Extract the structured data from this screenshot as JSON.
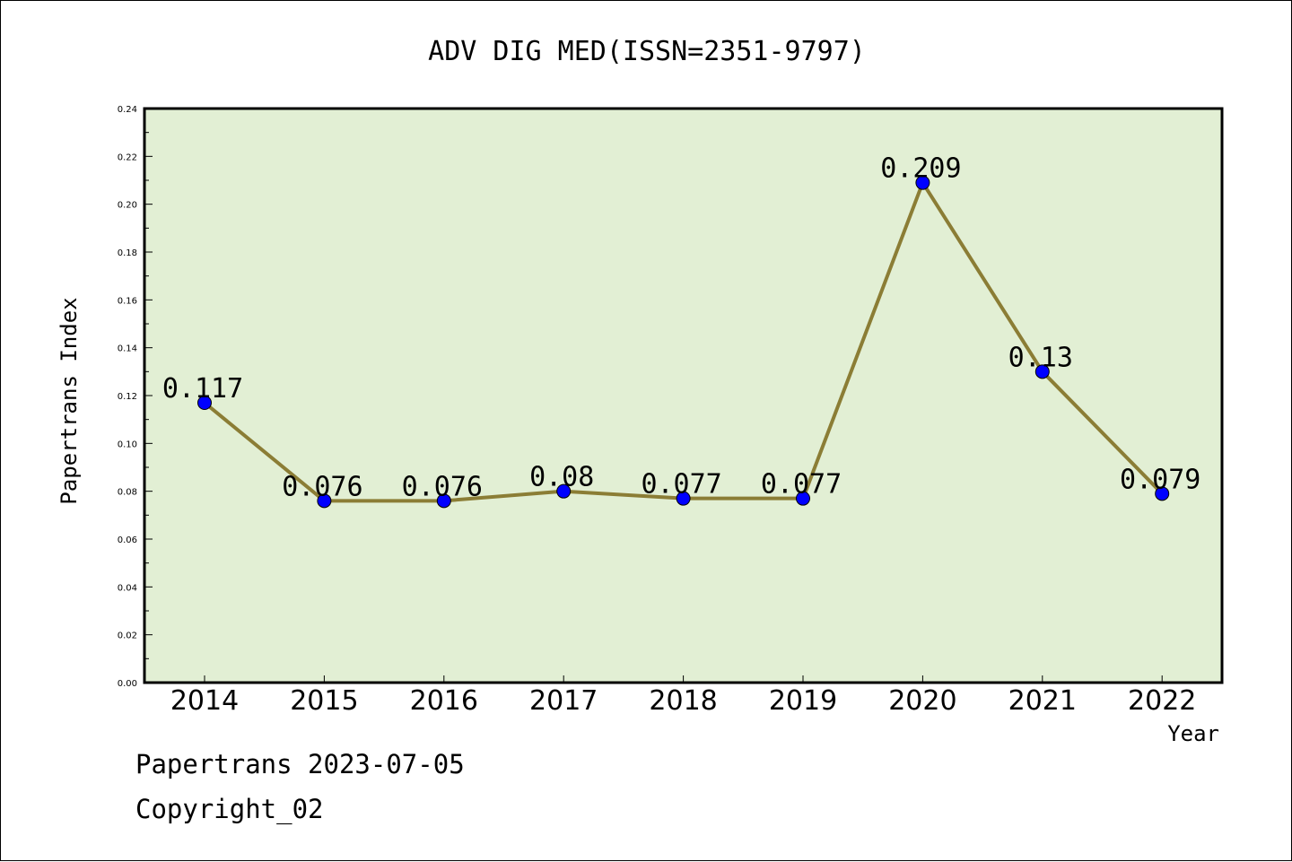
{
  "chart_data": {
    "type": "line",
    "title": "ADV DIG MED(ISSN=2351-9797)",
    "xlabel": "Year",
    "ylabel": "Papertrans Index",
    "categories": [
      "2014",
      "2015",
      "2016",
      "2017",
      "2018",
      "2019",
      "2020",
      "2021",
      "2022"
    ],
    "values": [
      0.117,
      0.076,
      0.076,
      0.08,
      0.077,
      0.077,
      0.209,
      0.13,
      0.079
    ],
    "data_labels": [
      "0.117",
      "0.076",
      "0.076",
      "0.08",
      "0.077",
      "0.077",
      "0.209",
      "0.13",
      "0.079"
    ],
    "ylim": [
      0,
      0.24
    ],
    "yticks": [
      "0.00",
      "0.02",
      "0.04",
      "0.06",
      "0.08",
      "0.10",
      "0.12",
      "0.14",
      "0.16",
      "0.18",
      "0.20",
      "0.22",
      "0.24"
    ],
    "grid": false,
    "colors": {
      "plot_background": "#e2efd4",
      "line": "#8b7d35",
      "marker": "#0000ff"
    }
  },
  "footer": {
    "line1": "Papertrans 2023-07-05",
    "line2": "Copyright_02"
  }
}
